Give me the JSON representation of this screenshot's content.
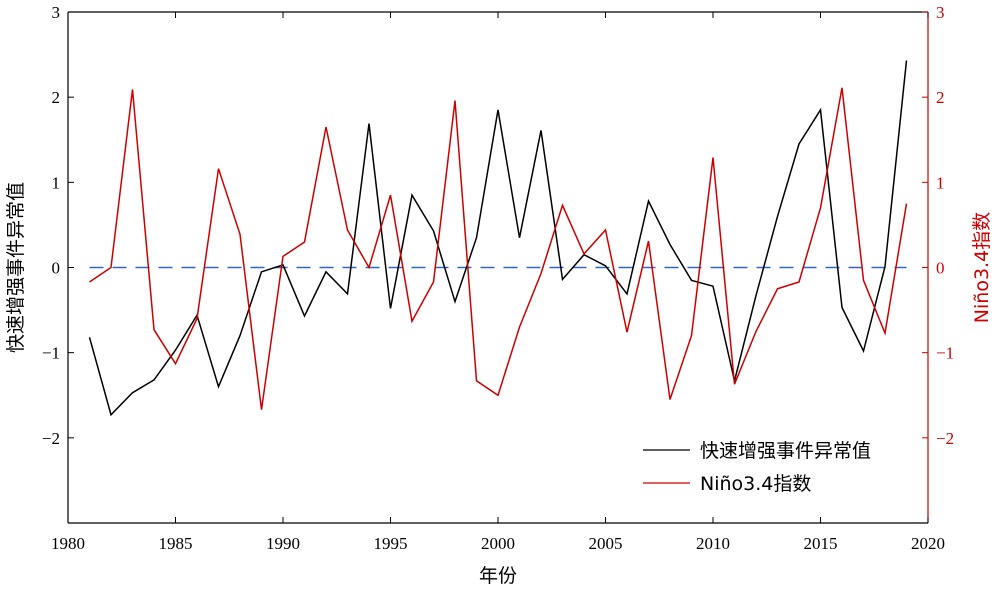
{
  "chart_data": {
    "type": "line",
    "x": [
      1981,
      1982,
      1983,
      1984,
      1985,
      1986,
      1987,
      1988,
      1989,
      1990,
      1991,
      1992,
      1993,
      1994,
      1995,
      1996,
      1997,
      1998,
      1999,
      2000,
      2001,
      2002,
      2003,
      2004,
      2005,
      2006,
      2007,
      2008,
      2009,
      2010,
      2011,
      2012,
      2013,
      2014,
      2015,
      2016,
      2017,
      2018,
      2019
    ],
    "series": [
      {
        "name": "快速增强事件异常值",
        "axis": "left",
        "color": "#000000",
        "values": [
          -0.82,
          -1.73,
          -1.47,
          -1.32,
          -0.97,
          -0.56,
          -1.4,
          -0.8,
          -0.05,
          0.03,
          -0.57,
          -0.05,
          -0.31,
          1.69,
          -0.48,
          0.85,
          0.43,
          -0.4,
          0.35,
          1.85,
          0.35,
          1.61,
          -0.14,
          0.15,
          0.02,
          -0.31,
          0.78,
          0.27,
          -0.15,
          -0.22,
          -1.33,
          -0.33,
          0.6,
          1.45,
          1.85,
          -0.47,
          -0.98,
          0.01,
          2.43
        ]
      },
      {
        "name": "Niño3.4指数",
        "axis": "right",
        "color": "#cc0000",
        "values": [
          -0.17,
          0.0,
          2.09,
          -0.73,
          -1.13,
          -0.6,
          1.16,
          0.39,
          -1.67,
          0.13,
          0.3,
          1.65,
          0.44,
          0.0,
          0.85,
          -0.63,
          -0.17,
          1.96,
          -1.33,
          -1.5,
          -0.7,
          -0.07,
          0.73,
          0.16,
          0.44,
          -0.76,
          0.31,
          -1.55,
          -0.8,
          1.29,
          -1.37,
          -0.75,
          -0.25,
          -0.17,
          0.7,
          2.11,
          -0.15,
          -0.77,
          0.75
        ]
      }
    ],
    "xlim": [
      1980,
      2020
    ],
    "ylim_left": [
      -3,
      3
    ],
    "ylim_right": [
      -3,
      3
    ],
    "xticks": [
      1980,
      1985,
      1990,
      1995,
      2000,
      2005,
      2010,
      2015,
      2020
    ],
    "yticks_left": [
      -2,
      -1,
      0,
      1,
      2,
      3
    ],
    "yticks_right": [
      -2,
      -1,
      0,
      1,
      2,
      3
    ],
    "xlabel": "年份",
    "ylabel_left": "快速增强事件异常值",
    "ylabel_right": "Niño3.4指数",
    "zero_line": {
      "value": 0,
      "style": "dashed",
      "color": "#3366cc"
    },
    "legend_position": "lower-right",
    "grid": false,
    "right_axis_color": "#cc0000"
  }
}
